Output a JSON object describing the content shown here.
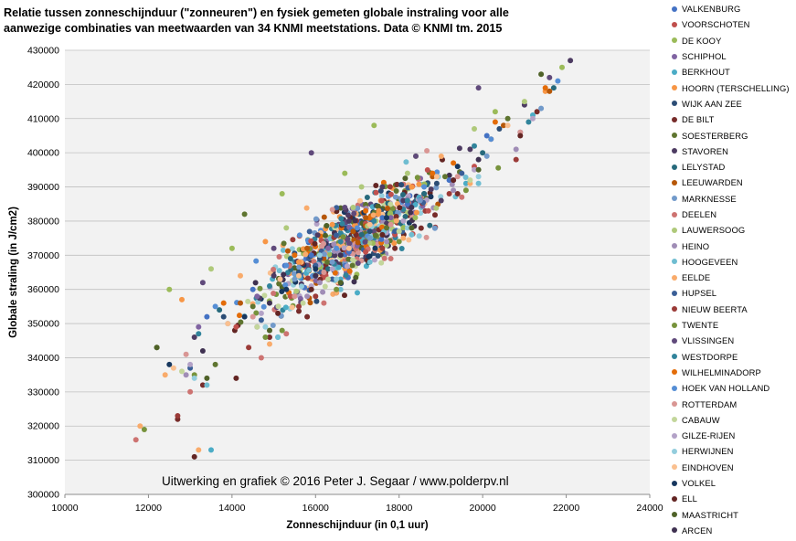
{
  "title_lines": [
    "Relatie tussen zonneschijnduur (\"zonneuren\") en fysiek gemeten globale instraling voor alle",
    "aanwezige combinaties van meetwaarden van 34 KNMI meetstations. Data © KNMI tm. 2015"
  ],
  "chart_data": {
    "type": "scatter",
    "title": "Relatie tussen zonneschijnduur (\"zonneuren\") en fysiek gemeten globale instraling voor alle aanwezige combinaties van meetwaarden van 34 KNMI meetstations. Data © KNMI tm. 2015",
    "xlabel": "Zonneschijnduur (in 0,1 uur)",
    "ylabel": "Globale straling (in J/cm2)",
    "xlim": [
      10000,
      24000
    ],
    "ylim": [
      300000,
      430000
    ],
    "x_ticks": [
      10000,
      12000,
      14000,
      16000,
      18000,
      20000,
      22000,
      24000
    ],
    "y_ticks": [
      300000,
      310000,
      320000,
      330000,
      340000,
      350000,
      360000,
      370000,
      380000,
      390000,
      400000,
      410000,
      420000,
      430000
    ],
    "x_tick_labels": [
      "10000",
      "12000",
      "14000",
      "16000",
      "18000",
      "20000",
      "22000",
      "24000"
    ],
    "y_tick_labels": [
      "300000",
      "310000",
      "320000",
      "330000",
      "340000",
      "350000",
      "360000",
      "370000",
      "380000",
      "390000",
      "400000",
      "410000",
      "420000",
      "430000"
    ],
    "grid": "horizontal",
    "legend_position": "right",
    "annotation": "Uitwerking en grafiek © 2016 Peter J. Segaar / www.polderpv.nl",
    "series": [
      {
        "name": "VALKENBURG",
        "color": "#4472c4",
        "x": [
          13400,
          15900,
          17600,
          18200,
          20100,
          16800,
          14500,
          19200
        ],
        "y": [
          352000,
          370000,
          381000,
          385000,
          405000,
          371000,
          360000,
          392000
        ]
      },
      {
        "name": "VOORSCHOTEN",
        "color": "#c0504d",
        "x": [
          14100,
          16200,
          17900,
          18700,
          19800,
          15400,
          17200
        ],
        "y": [
          349000,
          365000,
          376000,
          383000,
          396000,
          358000,
          371000
        ]
      },
      {
        "name": "DE KOOY",
        "color": "#9bbb59",
        "x": [
          14000,
          15200,
          16700,
          18400,
          20300,
          21900,
          17400,
          12500
        ],
        "y": [
          372000,
          388000,
          394000,
          399000,
          412000,
          425000,
          408000,
          360000
        ]
      },
      {
        "name": "SCHIPHOL",
        "color": "#8064a2",
        "x": [
          13200,
          14600,
          16300,
          17800,
          19300,
          20900,
          18100
        ],
        "y": [
          349000,
          358000,
          372000,
          381000,
          392000,
          406000,
          386000
        ]
      },
      {
        "name": "BERKHOUT",
        "color": "#4bacc6",
        "x": [
          13500,
          15100,
          16600,
          18000,
          19600,
          21200,
          17000
        ],
        "y": [
          313000,
          346000,
          363000,
          377000,
          391000,
          411000,
          359000
        ]
      },
      {
        "name": "HOORN (TERSCHELLING)",
        "color": "#f79646",
        "x": [
          12800,
          14800,
          16400,
          18300,
          20200,
          21500,
          17500,
          15600
        ],
        "y": [
          357000,
          374000,
          379000,
          390000,
          404000,
          418000,
          382000,
          368000
        ]
      },
      {
        "name": "WIJK AAN ZEE",
        "color": "#2c4d75",
        "x": [
          13800,
          15600,
          17300,
          18900,
          20400,
          16100,
          18600
        ],
        "y": [
          352000,
          365000,
          377000,
          391000,
          407000,
          369000,
          388000
        ]
      },
      {
        "name": "DE BILT",
        "color": "#772c2a",
        "x": [
          12700,
          13300,
          14900,
          16500,
          17900,
          19400,
          21300,
          15800
        ],
        "y": [
          322000,
          332000,
          346000,
          359000,
          372000,
          388000,
          412000,
          352000
        ]
      },
      {
        "name": "SOESTERBERG",
        "color": "#5f7530",
        "x": [
          12200,
          13600,
          14500,
          16000,
          17700,
          19100,
          20600,
          14300
        ],
        "y": [
          343000,
          338000,
          355000,
          364000,
          378000,
          393000,
          410000,
          382000
        ]
      },
      {
        "name": "STAVOREN",
        "color": "#4d3b62",
        "x": [
          13100,
          15000,
          16800,
          18100,
          19700,
          21000,
          22100,
          17600
        ],
        "y": [
          346000,
          364000,
          380000,
          386000,
          401000,
          414000,
          427000,
          390000
        ]
      },
      {
        "name": "LELYSTAD",
        "color": "#276a7c",
        "x": [
          13700,
          15400,
          17100,
          18600,
          20000,
          21700,
          16300
        ],
        "y": [
          354000,
          369000,
          376000,
          388000,
          400000,
          419000,
          366000
        ]
      },
      {
        "name": "LEEUWARDEN",
        "color": "#b65708",
        "x": [
          14200,
          15800,
          17200,
          18800,
          20500,
          21600,
          16900
        ],
        "y": [
          356000,
          372000,
          381000,
          393000,
          408000,
          418000,
          377000
        ]
      },
      {
        "name": "MARKNESSE",
        "color": "#729aca",
        "x": [
          13900,
          15500,
          17300,
          18500,
          20100,
          21400,
          16400
        ],
        "y": [
          350000,
          363000,
          375000,
          386000,
          399000,
          413000,
          368000
        ]
      },
      {
        "name": "DEELEN",
        "color": "#cd7371",
        "x": [
          11700,
          13000,
          14700,
          16200,
          17800,
          19500,
          15300
        ],
        "y": [
          316000,
          330000,
          340000,
          356000,
          369000,
          387000,
          347000
        ]
      },
      {
        "name": "LAUWERSOOG",
        "color": "#afc97a",
        "x": [
          13500,
          15300,
          16900,
          18200,
          19800,
          21000,
          17100
        ],
        "y": [
          366000,
          378000,
          384000,
          394000,
          407000,
          415000,
          390000
        ]
      },
      {
        "name": "HEINO",
        "color": "#a08db6",
        "x": [
          12900,
          14600,
          16100,
          17700,
          19300,
          20800,
          15800
        ],
        "y": [
          335000,
          349000,
          362000,
          374000,
          389000,
          401000,
          358000
        ]
      },
      {
        "name": "HOOGEVEEN",
        "color": "#6fbdd1",
        "x": [
          13400,
          15100,
          16600,
          18300,
          19900,
          17300
        ],
        "y": [
          332000,
          346000,
          360000,
          376000,
          391000,
          368000
        ]
      },
      {
        "name": "EELDE",
        "color": "#f9ab6b",
        "x": [
          11800,
          12400,
          13200,
          14900,
          16500,
          18100,
          19700,
          14200
        ],
        "y": [
          320000,
          335000,
          313000,
          344000,
          359000,
          375000,
          391000,
          364000
        ]
      },
      {
        "name": "HUPSEL",
        "color": "#3a5f97",
        "x": [
          13000,
          14700,
          16400,
          17900,
          19500,
          16000
        ],
        "y": [
          337000,
          351000,
          363000,
          377000,
          394000,
          367000
        ]
      },
      {
        "name": "NIEUW BEERTA",
        "color": "#9b3b38",
        "x": [
          12700,
          14400,
          16000,
          17600,
          19200,
          20800,
          15600
        ],
        "y": [
          323000,
          343000,
          358000,
          372000,
          388000,
          398000,
          355000
        ]
      },
      {
        "name": "TWENTE",
        "color": "#77933c",
        "x": [
          11900,
          13100,
          14800,
          16500,
          18000,
          19600,
          15200
        ],
        "y": [
          319000,
          335000,
          346000,
          360000,
          374000,
          389000,
          348000
        ]
      },
      {
        "name": "VLISSINGEN",
        "color": "#604a7b",
        "x": [
          13300,
          15000,
          16700,
          18400,
          19900,
          21600,
          15900
        ],
        "y": [
          362000,
          372000,
          384000,
          399000,
          419000,
          422000,
          400000
        ]
      },
      {
        "name": "WESTDORPE",
        "color": "#31849b",
        "x": [
          13200,
          14900,
          16600,
          18200,
          19800,
          21100,
          17400
        ],
        "y": [
          347000,
          361000,
          374000,
          386000,
          402000,
          409000,
          380000
        ]
      },
      {
        "name": "WILHELMINADORP",
        "color": "#e36c09",
        "x": [
          13800,
          15500,
          17200,
          18800,
          20300,
          21500,
          19300
        ],
        "y": [
          356000,
          370000,
          383000,
          394000,
          409000,
          419000,
          397000
        ]
      },
      {
        "name": "HOEK VAN HOLLAND",
        "color": "#558ed5",
        "x": [
          13600,
          15300,
          17000,
          18600,
          20200,
          21800,
          16500
        ],
        "y": [
          355000,
          367000,
          378000,
          390000,
          404000,
          421000,
          372000
        ]
      },
      {
        "name": "ROTTERDAM",
        "color": "#d99694",
        "x": [
          12900,
          14500,
          16200,
          17800,
          19400,
          20900,
          15500
        ],
        "y": [
          341000,
          352000,
          365000,
          379000,
          393000,
          406000,
          358000
        ]
      },
      {
        "name": "CABAUW",
        "color": "#c3d69b",
        "x": [
          12800,
          14600,
          16300,
          18000,
          19700,
          15700
        ],
        "y": [
          336000,
          349000,
          363000,
          377000,
          392000,
          356000
        ]
      },
      {
        "name": "GILZE-RIJEN",
        "color": "#b3a2c7",
        "x": [
          13000,
          14700,
          16400,
          18100,
          19800,
          21200,
          15900
        ],
        "y": [
          338000,
          353000,
          366000,
          380000,
          395000,
          410000,
          361000
        ]
      },
      {
        "name": "HERWIJNEN",
        "color": "#93cddd",
        "x": [
          13100,
          14800,
          16500,
          18200,
          19900,
          16100
        ],
        "y": [
          334000,
          349000,
          363000,
          378000,
          393000,
          370000
        ]
      },
      {
        "name": "EINDHOVEN",
        "color": "#fac090",
        "x": [
          12600,
          13900,
          15600,
          17300,
          18900,
          20600,
          16800
        ],
        "y": [
          337000,
          350000,
          364000,
          379000,
          393000,
          408000,
          372000
        ]
      },
      {
        "name": "VOLKEL",
        "color": "#17375e",
        "x": [
          12500,
          14300,
          16000,
          17700,
          19400,
          15300
        ],
        "y": [
          338000,
          352000,
          366000,
          381000,
          396000,
          360000
        ]
      },
      {
        "name": "ELL",
        "color": "#632523",
        "x": [
          13100,
          14100,
          15900,
          17600,
          19300,
          20900,
          15100
        ],
        "y": [
          311000,
          334000,
          360000,
          376000,
          392000,
          405000,
          353000
        ]
      },
      {
        "name": "MAASTRICHT",
        "color": "#4f6228",
        "x": [
          12200,
          13400,
          14900,
          16600,
          18300,
          19900,
          21400
        ],
        "y": [
          343000,
          334000,
          348000,
          362000,
          378000,
          395000,
          423000
        ]
      },
      {
        "name": "ARCEN",
        "color": "#3f3151",
        "x": [
          13300,
          14900,
          16600,
          18300,
          19900,
          16000
        ],
        "y": [
          342000,
          356000,
          370000,
          384000,
          398000,
          364000
        ]
      }
    ]
  },
  "cloud": {
    "n": 780,
    "intercept": 250000,
    "slope": 7.4,
    "sd_x": 1750,
    "mean_x": 16800,
    "noise_y": 9500
  }
}
